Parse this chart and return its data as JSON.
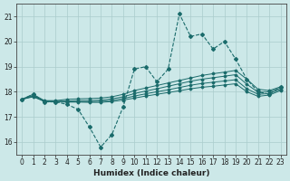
{
  "xlabel": "Humidex (Indice chaleur)",
  "background_color": "#cce8e8",
  "grid_color": "#aacccc",
  "line_color": "#1a6b6b",
  "xlim": [
    -0.5,
    23.5
  ],
  "ylim": [
    15.5,
    21.5
  ],
  "yticks": [
    16,
    17,
    18,
    19,
    20,
    21
  ],
  "xticks": [
    0,
    1,
    2,
    3,
    4,
    5,
    6,
    7,
    8,
    9,
    10,
    11,
    12,
    13,
    14,
    15,
    16,
    17,
    18,
    19,
    20,
    21,
    22,
    23
  ],
  "x": [
    0,
    1,
    2,
    3,
    4,
    5,
    6,
    7,
    8,
    9,
    10,
    11,
    12,
    13,
    14,
    15,
    16,
    17,
    18,
    19,
    20,
    21,
    22,
    23
  ],
  "line1": [
    17.7,
    17.9,
    17.6,
    17.6,
    17.5,
    17.3,
    16.6,
    15.8,
    16.3,
    17.4,
    18.9,
    19.0,
    18.4,
    18.9,
    21.1,
    20.2,
    20.3,
    19.7,
    20.0,
    19.3,
    18.5,
    18.0,
    17.9,
    18.2
  ],
  "line2": [
    17.7,
    17.9,
    17.65,
    17.65,
    17.7,
    17.72,
    17.73,
    17.75,
    17.8,
    17.9,
    18.05,
    18.15,
    18.25,
    18.35,
    18.45,
    18.55,
    18.65,
    18.72,
    18.78,
    18.85,
    18.5,
    18.1,
    18.05,
    18.2
  ],
  "line3": [
    17.7,
    17.85,
    17.62,
    17.62,
    17.63,
    17.65,
    17.65,
    17.67,
    17.72,
    17.8,
    17.93,
    18.03,
    18.12,
    18.22,
    18.32,
    18.42,
    18.5,
    18.56,
    18.62,
    18.68,
    18.3,
    17.98,
    18.0,
    18.15
  ],
  "line4": [
    17.7,
    17.82,
    17.62,
    17.61,
    17.61,
    17.61,
    17.61,
    17.62,
    17.66,
    17.73,
    17.83,
    17.92,
    18.0,
    18.08,
    18.17,
    18.26,
    18.33,
    18.38,
    18.43,
    18.48,
    18.12,
    17.9,
    17.93,
    18.1
  ],
  "line5": [
    17.7,
    17.8,
    17.62,
    17.6,
    17.59,
    17.59,
    17.58,
    17.58,
    17.61,
    17.67,
    17.75,
    17.83,
    17.9,
    17.97,
    18.04,
    18.12,
    18.18,
    18.22,
    18.27,
    18.32,
    18.0,
    17.82,
    17.87,
    18.05
  ]
}
